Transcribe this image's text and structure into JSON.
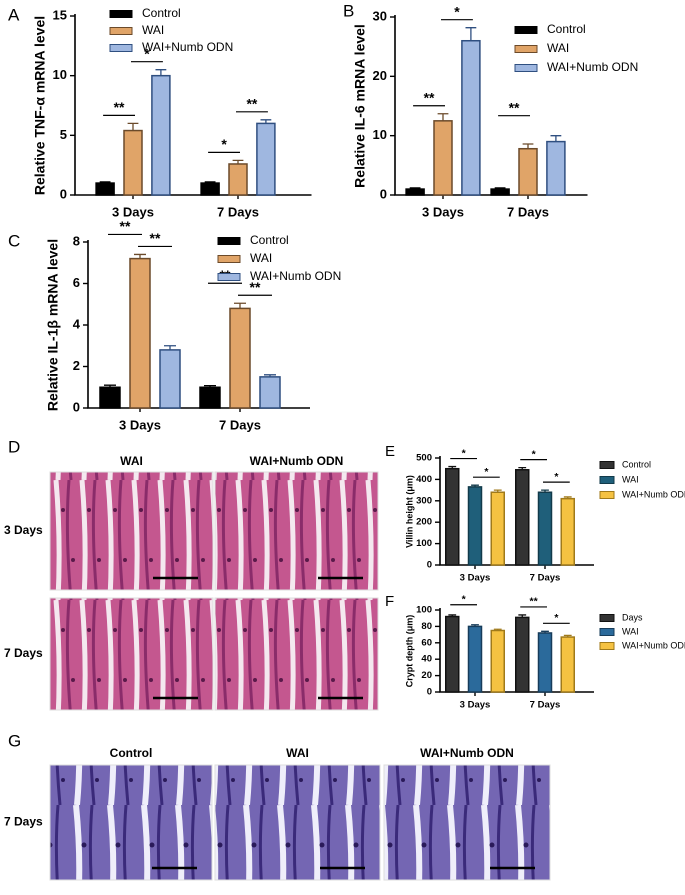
{
  "chart_data": [
    {
      "type": "bar",
      "panel": "A",
      "ylabel": "Relative TNF-α mRNA level",
      "categories": [
        "3 Days",
        "7 Days"
      ],
      "series": [
        {
          "name": "Control",
          "color": "#000000",
          "edge": "#000000",
          "values": [
            1,
            1
          ],
          "errors": [
            0.1,
            0.1
          ]
        },
        {
          "name": "WAI",
          "color": "#e0a468",
          "edge": "#6b4a2a",
          "values": [
            5.4,
            2.6
          ],
          "errors": [
            0.6,
            0.3
          ]
        },
        {
          "name": "WAI+Numb ODN",
          "color": "#9fb7e0",
          "edge": "#2f4f80",
          "values": [
            10,
            6
          ],
          "errors": [
            0.5,
            0.3
          ]
        }
      ],
      "significance": [
        [
          "**",
          "*"
        ],
        [
          "*",
          "**"
        ]
      ],
      "ylim": [
        0,
        15
      ],
      "yticks": [
        0,
        5,
        10,
        15
      ]
    },
    {
      "type": "bar",
      "panel": "B",
      "ylabel": "Relative IL-6 mRNA level",
      "categories": [
        "3 Days",
        "7 Days"
      ],
      "series": [
        {
          "name": "Control",
          "color": "#000000",
          "edge": "#000000",
          "values": [
            1,
            1
          ],
          "errors": [
            0.2,
            0.2
          ]
        },
        {
          "name": "WAI",
          "color": "#e0a468",
          "edge": "#6b4a2a",
          "values": [
            12.5,
            7.8
          ],
          "errors": [
            1.2,
            0.8
          ]
        },
        {
          "name": "WAI+Numb ODN",
          "color": "#9fb7e0",
          "edge": "#2f4f80",
          "values": [
            26,
            9
          ],
          "errors": [
            2.2,
            1
          ]
        }
      ],
      "significance": [
        [
          "**",
          "*"
        ],
        [
          "**",
          null
        ]
      ],
      "ylim": [
        0,
        30
      ],
      "yticks": [
        0,
        10,
        20,
        30
      ]
    },
    {
      "type": "bar",
      "panel": "C",
      "ylabel": "Relative IL-1β mRNA level",
      "categories": [
        "3 Days",
        "7 Days"
      ],
      "series": [
        {
          "name": "Control",
          "color": "#000000",
          "edge": "#000000",
          "values": [
            1,
            1
          ],
          "errors": [
            0.1,
            0.08
          ]
        },
        {
          "name": "WAI",
          "color": "#e0a468",
          "edge": "#6b4a2a",
          "values": [
            7.2,
            4.8
          ],
          "errors": [
            0.2,
            0.25
          ]
        },
        {
          "name": "WAI+Numb ODN",
          "color": "#9fb7e0",
          "edge": "#2f4f80",
          "values": [
            2.8,
            1.5
          ],
          "errors": [
            0.2,
            0.1
          ]
        }
      ],
      "significance": [
        [
          "**",
          "**"
        ],
        [
          "**",
          "**"
        ]
      ],
      "ylim": [
        0,
        8
      ],
      "yticks": [
        0,
        2,
        4,
        6,
        8
      ]
    },
    {
      "type": "bar",
      "panel": "E",
      "ylabel": "Villin height (μm)",
      "categories": [
        "3 Days",
        "7 Days"
      ],
      "series": [
        {
          "name": "Control",
          "color": "#333333",
          "edge": "#111111",
          "values": [
            450,
            445
          ],
          "errors": [
            10,
            10
          ]
        },
        {
          "name": "WAI",
          "color": "#1f5f7a",
          "edge": "#123a4a",
          "values": [
            365,
            340
          ],
          "errors": [
            8,
            10
          ]
        },
        {
          "name": "WAI+Numb ODN",
          "color": "#f5c242",
          "edge": "#a07a1a",
          "values": [
            340,
            310
          ],
          "errors": [
            10,
            8
          ]
        }
      ],
      "significance": [
        [
          "*",
          "*"
        ],
        [
          "*",
          "*"
        ]
      ],
      "ylim": [
        0,
        500
      ],
      "yticks": [
        0,
        100,
        200,
        300,
        400,
        500
      ]
    },
    {
      "type": "bar",
      "panel": "F",
      "ylabel": "Crypt depth (μm)",
      "categories": [
        "3 Days",
        "7 Days"
      ],
      "series": [
        {
          "name": "Days",
          "color": "#333333",
          "edge": "#111111",
          "values": [
            92,
            91
          ],
          "errors": [
            2,
            3
          ]
        },
        {
          "name": "WAI",
          "color": "#2b6a9b",
          "edge": "#173c5a",
          "values": [
            80,
            72
          ],
          "errors": [
            2,
            2
          ]
        },
        {
          "name": "WAI+Numb ODN",
          "color": "#f5c242",
          "edge": "#a07a1a",
          "values": [
            75,
            67
          ],
          "errors": [
            1.5,
            2
          ]
        }
      ],
      "significance": [
        [
          "*",
          null
        ],
        [
          "**",
          "*"
        ]
      ],
      "ylim": [
        0,
        100
      ],
      "yticks": [
        0,
        20,
        40,
        60,
        80,
        100
      ]
    }
  ],
  "figures": [
    {
      "panel": "D",
      "columns": [
        "WAI",
        "WAI+Numb ODN"
      ],
      "rows": [
        "3 Days",
        "7 Days"
      ]
    },
    {
      "panel": "G",
      "columns": [
        "Control",
        "WAI",
        "WAI+Numb ODN"
      ],
      "rows": [
        "7 Days"
      ]
    }
  ]
}
